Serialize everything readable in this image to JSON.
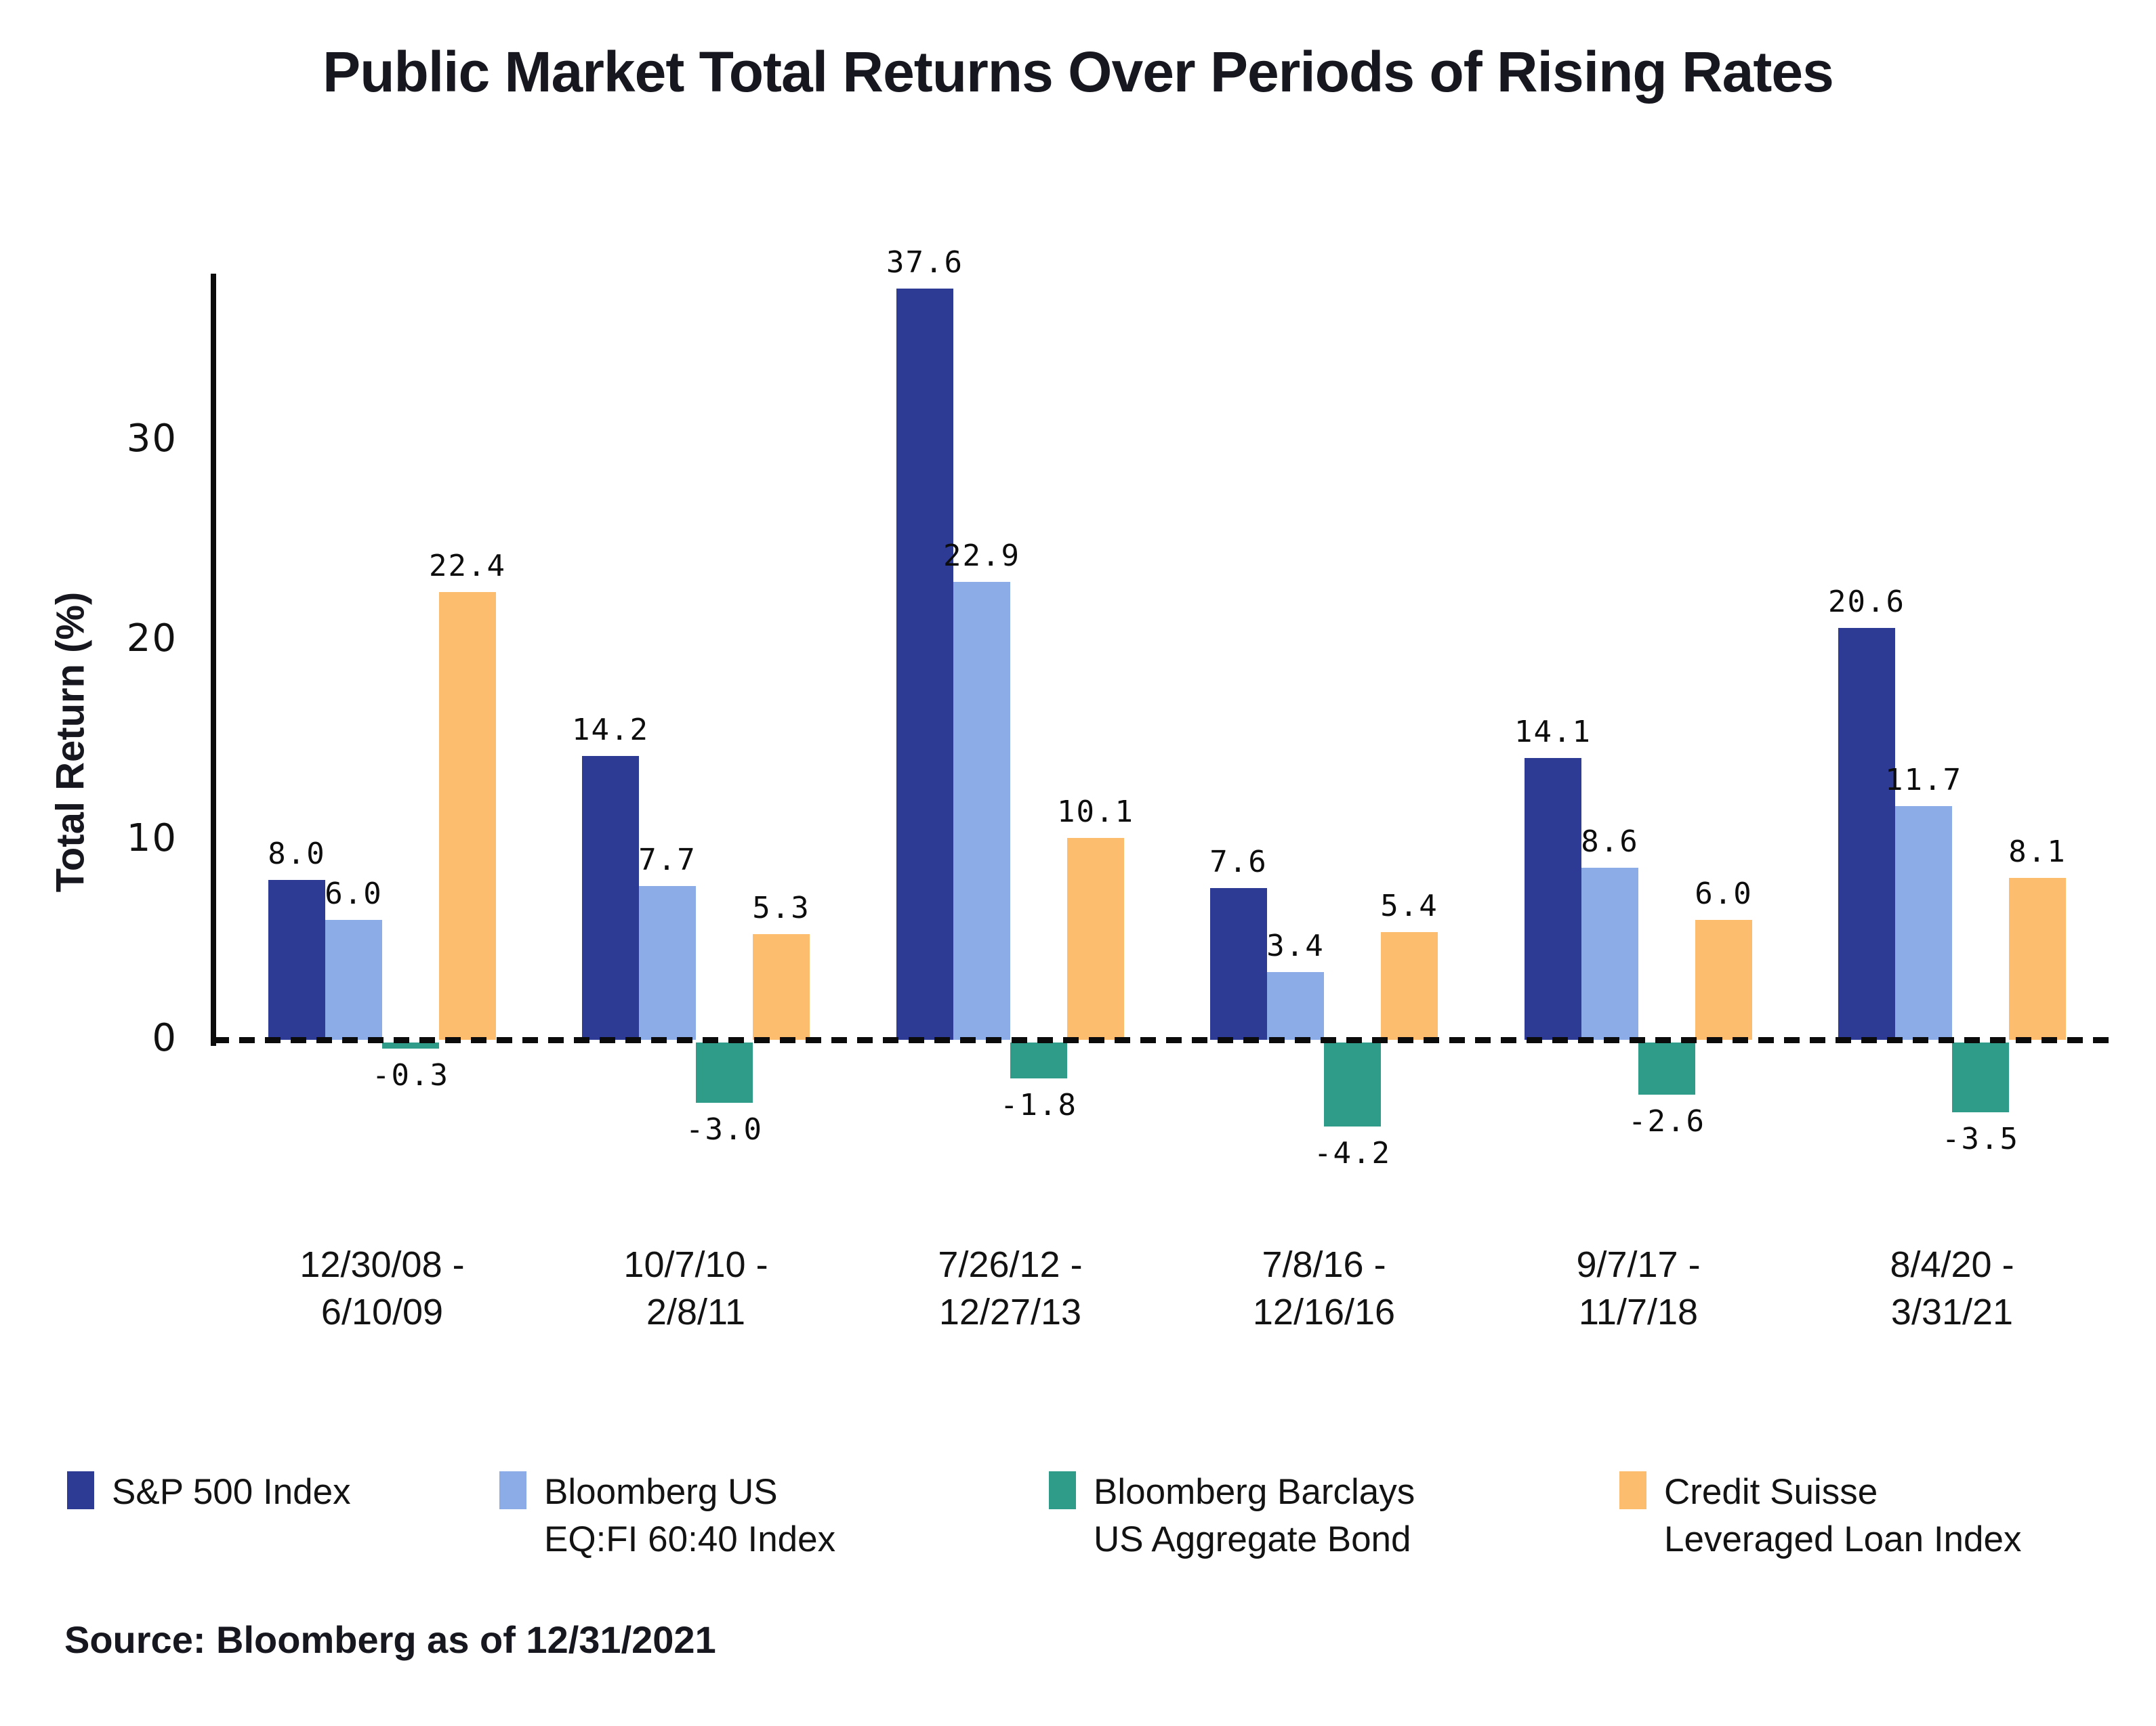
{
  "title": "Public Market Total Returns Over Periods of Rising Rates",
  "y_axis_label": "Total Return (%)",
  "source": "Source: Bloomberg as of 12/31/2021",
  "chart_data": {
    "type": "bar",
    "title": "Public Market Total Returns Over Periods of Rising Rates",
    "xlabel": "",
    "ylabel": "Total Return (%)",
    "ylim": [
      -6,
      39
    ],
    "yticks": [
      0,
      10,
      20,
      30
    ],
    "grid": false,
    "zero_line_style": "dotted",
    "legend_position": "bottom",
    "value_label_format": "one_decimal",
    "categories": [
      "12/30/08 - 6/10/09",
      "10/7/10 - 2/8/11",
      "7/26/12 - 12/27/13",
      "7/8/16 - 12/16/16",
      "9/7/17 - 11/7/18",
      "8/4/20 - 3/31/21"
    ],
    "category_lines": [
      [
        "12/30/08 -",
        "6/10/09"
      ],
      [
        "10/7/10 -",
        "2/8/11"
      ],
      [
        "7/26/12 -",
        "12/27/13"
      ],
      [
        "7/8/16 -",
        "12/16/16"
      ],
      [
        "9/7/17 -",
        "11/7/18"
      ],
      [
        "8/4/20 -",
        "3/31/21"
      ]
    ],
    "series": [
      {
        "name": "S&P 500 Index",
        "legend_lines": [
          "S&P 500 Index"
        ],
        "color": "#2e3b94",
        "values": [
          8.0,
          14.2,
          37.6,
          7.6,
          14.1,
          20.6
        ]
      },
      {
        "name": "Bloomberg US EQ:FI 60:40 Index",
        "legend_lines": [
          "Bloomberg US",
          "EQ:FI 60:40 Index"
        ],
        "color": "#8cace8",
        "values": [
          6.0,
          7.7,
          22.9,
          3.4,
          8.6,
          11.7
        ]
      },
      {
        "name": "Bloomberg Barclays US Aggregate Bond",
        "legend_lines": [
          "Bloomberg Barclays",
          "US Aggregate Bond"
        ],
        "color": "#2f9c8a",
        "values": [
          -0.3,
          -3.0,
          -1.8,
          -4.2,
          -2.6,
          -3.5
        ]
      },
      {
        "name": "Credit Suisse Leveraged Loan Index",
        "legend_lines": [
          "Credit Suisse",
          "Leveraged Loan Index"
        ],
        "color": "#fcbe6e",
        "values": [
          22.4,
          5.3,
          10.1,
          5.4,
          6.0,
          8.1
        ]
      }
    ]
  }
}
